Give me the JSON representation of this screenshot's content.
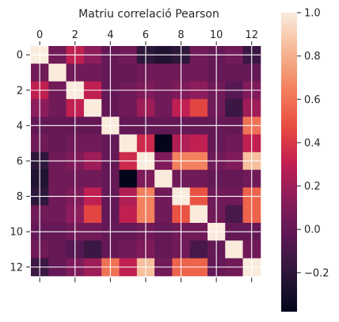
{
  "chart_data": {
    "type": "heatmap",
    "title": "Matriu correlació Pearson",
    "xlabel": "",
    "ylabel": "",
    "x_ticks": [
      0,
      2,
      4,
      6,
      8,
      10,
      12
    ],
    "y_ticks": [
      0,
      2,
      4,
      6,
      8,
      10,
      12
    ],
    "rows": 13,
    "cols": 13,
    "colorbar_ticks": [
      1.0,
      0.8,
      0.6,
      0.4,
      0.2,
      0.0,
      -0.2
    ],
    "colorbar_labels": [
      "1.0",
      "0.8",
      "0.6",
      "0.4",
      "0.2",
      "0.0",
      "−0.2"
    ],
    "vmin": -0.38,
    "vmax": 1.0,
    "grid": true,
    "colormap": "rocket",
    "values": [
      [
        1.0,
        0.05,
        0.3,
        0.15,
        0.0,
        0.05,
        -0.2,
        -0.25,
        -0.2,
        0.05,
        0.0,
        0.05,
        -0.15
      ],
      [
        0.05,
        1.0,
        0.05,
        0.05,
        0.0,
        0.0,
        0.05,
        0.05,
        0.05,
        0.05,
        0.0,
        0.0,
        0.0
      ],
      [
        0.3,
        0.05,
        1.0,
        0.3,
        0.0,
        0.05,
        0.1,
        0.05,
        0.1,
        0.15,
        0.05,
        -0.05,
        0.1
      ],
      [
        0.15,
        0.05,
        0.3,
        1.0,
        0.0,
        0.05,
        0.2,
        0.05,
        0.3,
        0.45,
        0.05,
        -0.15,
        0.2
      ],
      [
        0.0,
        0.0,
        0.0,
        0.0,
        1.0,
        0.0,
        0.0,
        0.0,
        0.0,
        0.0,
        0.0,
        0.0,
        0.6
      ],
      [
        0.05,
        0.0,
        0.05,
        0.05,
        0.0,
        1.0,
        0.35,
        -0.38,
        0.25,
        0.3,
        0.0,
        0.05,
        0.3
      ],
      [
        -0.2,
        0.05,
        0.1,
        0.2,
        0.0,
        0.35,
        1.0,
        0.1,
        0.65,
        0.65,
        0.05,
        0.1,
        0.85
      ],
      [
        -0.25,
        0.05,
        0.05,
        0.05,
        0.0,
        -0.38,
        0.1,
        1.0,
        0.05,
        0.05,
        0.0,
        0.0,
        0.05
      ],
      [
        -0.2,
        0.05,
        0.1,
        0.3,
        0.0,
        0.25,
        0.65,
        0.05,
        1.0,
        0.5,
        0.05,
        0.05,
        0.55
      ],
      [
        0.05,
        0.05,
        0.15,
        0.45,
        0.0,
        0.3,
        0.65,
        0.05,
        0.5,
        1.0,
        0.05,
        -0.1,
        0.55
      ],
      [
        0.0,
        0.0,
        0.05,
        0.05,
        0.0,
        0.0,
        0.05,
        0.0,
        0.05,
        0.05,
        1.0,
        0.0,
        0.0
      ],
      [
        0.05,
        0.0,
        -0.05,
        -0.15,
        0.0,
        0.05,
        0.1,
        0.0,
        0.05,
        -0.1,
        0.0,
        1.0,
        0.05
      ],
      [
        -0.15,
        0.0,
        0.1,
        0.2,
        0.6,
        0.3,
        0.85,
        0.05,
        0.55,
        0.55,
        0.0,
        0.05,
        1.0
      ]
    ]
  }
}
